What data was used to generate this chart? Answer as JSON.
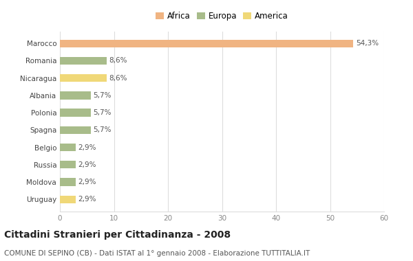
{
  "countries": [
    "Marocco",
    "Romania",
    "Nicaragua",
    "Albania",
    "Polonia",
    "Spagna",
    "Belgio",
    "Russia",
    "Moldova",
    "Uruguay"
  ],
  "values": [
    54.3,
    8.6,
    8.6,
    5.7,
    5.7,
    5.7,
    2.9,
    2.9,
    2.9,
    2.9
  ],
  "labels": [
    "54,3%",
    "8,6%",
    "8,6%",
    "5,7%",
    "5,7%",
    "5,7%",
    "2,9%",
    "2,9%",
    "2,9%",
    "2,9%"
  ],
  "colors": [
    "#F0B482",
    "#A8BC8A",
    "#F0D878",
    "#A8BC8A",
    "#A8BC8A",
    "#A8BC8A",
    "#A8BC8A",
    "#A8BC8A",
    "#A8BC8A",
    "#F0D878"
  ],
  "continent": [
    "Africa",
    "Europa",
    "America",
    "Europa",
    "Europa",
    "Europa",
    "Europa",
    "Europa",
    "Europa",
    "America"
  ],
  "legend_labels": [
    "Africa",
    "Europa",
    "America"
  ],
  "legend_colors": [
    "#F0B482",
    "#A8BC8A",
    "#F0D878"
  ],
  "title": "Cittadini Stranieri per Cittadinanza - 2008",
  "subtitle": "COMUNE DI SEPINO (CB) - Dati ISTAT al 1° gennaio 2008 - Elaborazione TUTTITALIA.IT",
  "xlim": [
    0,
    60
  ],
  "xticks": [
    0,
    10,
    20,
    30,
    40,
    50,
    60
  ],
  "bg_color": "#ffffff",
  "grid_color": "#dddddd",
  "bar_height": 0.45,
  "title_fontsize": 10,
  "subtitle_fontsize": 7.5,
  "label_fontsize": 7.5,
  "tick_fontsize": 7.5,
  "legend_fontsize": 8.5
}
